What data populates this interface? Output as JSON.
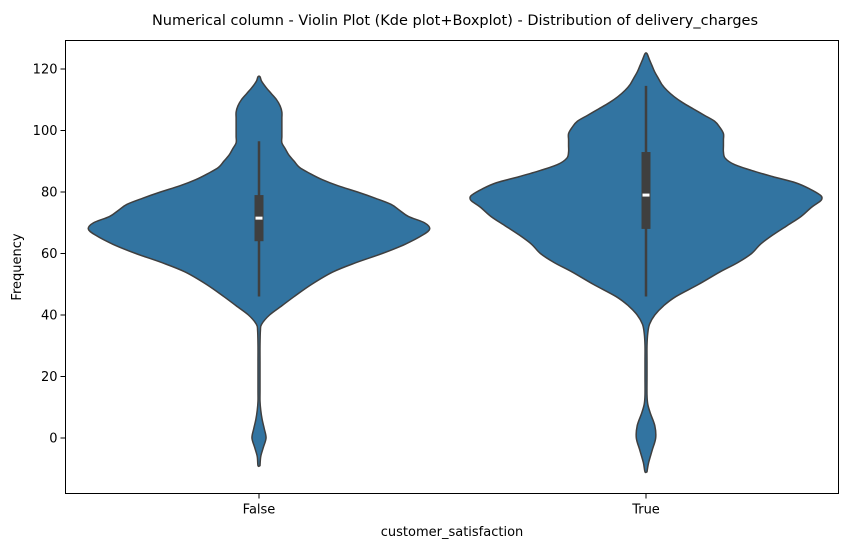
{
  "chart_data": {
    "type": "violin",
    "title": "Numerical column - Violin Plot (Kde plot+Boxplot) - Distribution of  delivery_charges",
    "xlabel": "customer_satisfaction",
    "ylabel": "Frequency",
    "categories": [
      "False",
      "True"
    ],
    "yticks": [
      0,
      20,
      40,
      60,
      80,
      100,
      120
    ],
    "ylim": [
      -16,
      132
    ],
    "grid": false,
    "colors": {
      "violin_fill": "#3274a1",
      "violin_edge": "#3f3f3f",
      "box": "#3f3f3f",
      "median": "#ffffff"
    },
    "violins": [
      {
        "category": "False",
        "box": {
          "whisker_low": 46,
          "q1": 64,
          "median": 71.5,
          "q3": 79,
          "whisker_high": 96.5
        },
        "density": [
          [
            -9,
            0
          ],
          [
            -6,
            0.01
          ],
          [
            -3,
            0.025
          ],
          [
            0,
            0.04
          ],
          [
            3,
            0.03
          ],
          [
            6,
            0.018
          ],
          [
            9,
            0.01
          ],
          [
            12,
            0.005
          ],
          [
            15,
            0.005
          ],
          [
            20,
            0.005
          ],
          [
            25,
            0.005
          ],
          [
            30,
            0.005
          ],
          [
            35,
            0.008
          ],
          [
            37,
            0.015
          ],
          [
            40,
            0.06
          ],
          [
            43,
            0.13
          ],
          [
            46,
            0.2
          ],
          [
            50,
            0.3
          ],
          [
            54,
            0.42
          ],
          [
            57,
            0.55
          ],
          [
            60,
            0.7
          ],
          [
            63,
            0.83
          ],
          [
            66,
            0.93
          ],
          [
            68,
            0.97
          ],
          [
            70,
            0.94
          ],
          [
            72,
            0.85
          ],
          [
            74,
            0.8
          ],
          [
            76,
            0.75
          ],
          [
            78,
            0.66
          ],
          [
            80,
            0.56
          ],
          [
            82,
            0.45
          ],
          [
            84,
            0.36
          ],
          [
            86,
            0.29
          ],
          [
            88,
            0.23
          ],
          [
            90,
            0.2
          ],
          [
            92,
            0.17
          ],
          [
            94,
            0.15
          ],
          [
            96,
            0.13
          ],
          [
            98,
            0.13
          ],
          [
            100,
            0.13
          ],
          [
            102,
            0.13
          ],
          [
            104,
            0.13
          ],
          [
            106,
            0.13
          ],
          [
            108,
            0.12
          ],
          [
            110,
            0.1
          ],
          [
            112,
            0.07
          ],
          [
            114,
            0.04
          ],
          [
            116,
            0.015
          ],
          [
            117.5,
            0
          ]
        ]
      },
      {
        "category": "True",
        "box": {
          "whisker_low": 46,
          "q1": 68,
          "median": 79,
          "q3": 93,
          "whisker_high": 114.5
        },
        "density": [
          [
            -11,
            0
          ],
          [
            -8,
            0.015
          ],
          [
            -4,
            0.035
          ],
          [
            0,
            0.055
          ],
          [
            4,
            0.05
          ],
          [
            8,
            0.025
          ],
          [
            11,
            0.01
          ],
          [
            14,
            0.005
          ],
          [
            20,
            0.005
          ],
          [
            25,
            0.005
          ],
          [
            30,
            0.005
          ],
          [
            34,
            0.01
          ],
          [
            37,
            0.02
          ],
          [
            40,
            0.05
          ],
          [
            43,
            0.1
          ],
          [
            46,
            0.17
          ],
          [
            50,
            0.3
          ],
          [
            54,
            0.42
          ],
          [
            57,
            0.52
          ],
          [
            60,
            0.6
          ],
          [
            63,
            0.65
          ],
          [
            66,
            0.72
          ],
          [
            69,
            0.8
          ],
          [
            72,
            0.88
          ],
          [
            75,
            0.94
          ],
          [
            77,
            0.99
          ],
          [
            78,
            1.0
          ],
          [
            79,
            0.99
          ],
          [
            81,
            0.93
          ],
          [
            83,
            0.85
          ],
          [
            85,
            0.72
          ],
          [
            87,
            0.6
          ],
          [
            89,
            0.5
          ],
          [
            91,
            0.45
          ],
          [
            93,
            0.44
          ],
          [
            95,
            0.44
          ],
          [
            97,
            0.44
          ],
          [
            99,
            0.44
          ],
          [
            101,
            0.42
          ],
          [
            103,
            0.39
          ],
          [
            105,
            0.33
          ],
          [
            107,
            0.27
          ],
          [
            109,
            0.21
          ],
          [
            111,
            0.16
          ],
          [
            113,
            0.12
          ],
          [
            115,
            0.09
          ],
          [
            117,
            0.07
          ],
          [
            119,
            0.05
          ],
          [
            121,
            0.035
          ],
          [
            123,
            0.02
          ],
          [
            125,
            0
          ]
        ]
      }
    ]
  }
}
